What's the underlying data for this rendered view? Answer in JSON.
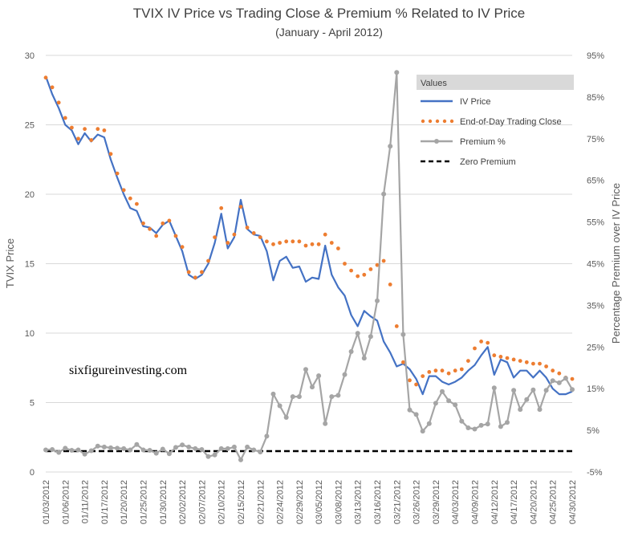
{
  "chart_data": {
    "type": "line",
    "title": "TVIX IV Price vs Trading Close & Premium % Related to IV Price",
    "subtitle": "(January - April 2012)",
    "ylabel": "TVIX Price",
    "y2label": "Percentage Premium over IV Price",
    "ylim": [
      0,
      30
    ],
    "y2lim": [
      -5,
      95
    ],
    "yticks": [
      "0",
      "5",
      "10",
      "15",
      "20",
      "25",
      "30"
    ],
    "y2ticks": [
      "-5%",
      "5%",
      "15%",
      "25%",
      "35%",
      "45%",
      "55%",
      "65%",
      "75%",
      "85%",
      "95%"
    ],
    "grid": true,
    "legend_title": "Values",
    "legend_position": "top-right",
    "annotation": "sixfigureinvesting.com",
    "x": [
      "01/03/2012",
      "01/04/2012",
      "01/05/2012",
      "01/06/2012",
      "01/09/2012",
      "01/10/2012",
      "01/11/2012",
      "01/12/2012",
      "01/13/2012",
      "01/17/2012",
      "01/18/2012",
      "01/19/2012",
      "01/20/2012",
      "01/23/2012",
      "01/24/2012",
      "01/25/2012",
      "01/26/2012",
      "01/27/2012",
      "01/30/2012",
      "01/31/2012",
      "02/01/2012",
      "02/02/2012",
      "02/03/2012",
      "02/06/2012",
      "02/07/2012",
      "02/08/2012",
      "02/09/2012",
      "02/10/2012",
      "02/13/2012",
      "02/14/2012",
      "02/15/2012",
      "02/16/2012",
      "02/17/2012",
      "02/21/2012",
      "02/22/2012",
      "02/23/2012",
      "02/24/2012",
      "02/27/2012",
      "02/28/2012",
      "02/29/2012",
      "03/01/2012",
      "03/02/2012",
      "03/05/2012",
      "03/06/2012",
      "03/07/2012",
      "03/08/2012",
      "03/09/2012",
      "03/12/2012",
      "03/13/2012",
      "03/14/2012",
      "03/15/2012",
      "03/16/2012",
      "03/19/2012",
      "03/20/2012",
      "03/21/2012",
      "03/22/2012",
      "03/23/2012",
      "03/26/2012",
      "03/27/2012",
      "03/28/2012",
      "03/29/2012",
      "03/30/2012",
      "04/02/2012",
      "04/03/2012",
      "04/04/2012",
      "04/05/2012",
      "04/09/2012",
      "04/10/2012",
      "04/11/2012",
      "04/12/2012",
      "04/13/2012",
      "04/16/2012",
      "04/17/2012",
      "04/18/2012",
      "04/19/2012",
      "04/20/2012",
      "04/23/2012",
      "04/24/2012",
      "04/25/2012",
      "04/26/2012",
      "04/27/2012",
      "04/30/2012"
    ],
    "xtick_labels": [
      "01/03/2012",
      "01/06/2012",
      "01/11/2012",
      "01/17/2012",
      "01/20/2012",
      "01/25/2012",
      "01/30/2012",
      "02/02/2012",
      "02/07/2012",
      "02/10/2012",
      "02/15/2012",
      "02/21/2012",
      "02/24/2012",
      "02/29/2012",
      "03/05/2012",
      "03/08/2012",
      "03/13/2012",
      "03/16/2012",
      "03/21/2012",
      "03/26/2012",
      "03/29/2012",
      "04/03/2012",
      "04/09/2012",
      "04/12/2012",
      "04/17/2012",
      "04/20/2012",
      "04/25/2012",
      "04/30/2012"
    ],
    "series": [
      {
        "name": "IV Price",
        "axis": "left",
        "color": "#4472c4",
        "style": "solid",
        "values": [
          28.5,
          27.2,
          26.2,
          25.0,
          24.6,
          23.6,
          24.4,
          23.8,
          24.3,
          24.1,
          22.5,
          21.2,
          20.0,
          19.0,
          18.8,
          17.7,
          17.6,
          17.2,
          17.8,
          18.1,
          17.0,
          15.9,
          14.2,
          13.9,
          14.2,
          15.0,
          16.5,
          18.6,
          16.1,
          16.9,
          19.6,
          17.5,
          17.1,
          17.0,
          15.9,
          13.8,
          15.2,
          15.5,
          14.7,
          14.8,
          13.7,
          14.0,
          13.9,
          16.3,
          14.2,
          13.3,
          12.7,
          11.3,
          10.5,
          11.6,
          11.2,
          10.9,
          9.4,
          8.6,
          7.6,
          7.8,
          7.4,
          6.7,
          5.6,
          6.9,
          6.9,
          6.5,
          6.3,
          6.5,
          6.8,
          7.3,
          7.7,
          8.4,
          9.0,
          7.0,
          8.1,
          7.9,
          6.8,
          7.3,
          7.3,
          6.8,
          7.3,
          6.8,
          6.0,
          5.6,
          5.6,
          5.8
        ]
      },
      {
        "name": "End-of-Day Trading Close",
        "axis": "left",
        "color": "#ed7d31",
        "style": "dotted",
        "values": [
          28.4,
          27.7,
          26.6,
          25.5,
          24.8,
          24.0,
          24.7,
          23.9,
          24.7,
          24.6,
          22.9,
          21.5,
          20.3,
          19.7,
          19.3,
          17.9,
          17.5,
          17.0,
          17.9,
          18.1,
          17.0,
          16.2,
          14.4,
          14.0,
          14.4,
          15.2,
          16.9,
          19.0,
          16.5,
          17.1,
          19.1,
          17.6,
          17.2,
          16.9,
          16.6,
          16.4,
          16.5,
          16.6,
          16.6,
          16.6,
          16.3,
          16.4,
          16.4,
          17.1,
          16.5,
          16.1,
          15.0,
          14.5,
          14.1,
          14.2,
          14.6,
          14.9,
          15.2,
          13.5,
          10.5,
          7.9,
          6.6,
          6.3,
          6.9,
          7.2,
          7.3,
          7.3,
          7.1,
          7.3,
          7.4,
          8.0,
          8.9,
          9.4,
          9.3,
          8.4,
          8.3,
          8.2,
          8.1,
          8.0,
          7.9,
          7.8,
          7.8,
          7.6,
          7.3,
          7.1,
          6.8,
          6.7
        ]
      },
      {
        "name": "Premium %",
        "axis": "right",
        "color": "#a5a5a5",
        "style": "solid-marker",
        "values": [
          0.3,
          0.4,
          -0.3,
          0.7,
          0.2,
          0.3,
          -0.7,
          0.1,
          1.2,
          1.0,
          0.8,
          0.7,
          0.6,
          0.3,
          1.6,
          0.3,
          0.2,
          -0.5,
          0.5,
          -0.6,
          0.9,
          1.5,
          1.0,
          0.6,
          0.4,
          -1.3,
          -0.9,
          0.6,
          0.6,
          1.0,
          -2.1,
          1.0,
          0.3,
          -0.2,
          3.6,
          13.7,
          10.9,
          8.1,
          13.1,
          13.1,
          19.6,
          15.4,
          18.1,
          6.6,
          13.1,
          13.4,
          18.4,
          23.9,
          28.3,
          22.3,
          27.5,
          36.1,
          61.7,
          73.2,
          90.9,
          28.0,
          9.9,
          8.8,
          4.8,
          6.6,
          11.5,
          14.3,
          12.1,
          11.1,
          7.2,
          5.6,
          5.3,
          6.2,
          6.5,
          15.2,
          5.9,
          6.9,
          14.6,
          10.0,
          12.4,
          14.7,
          10.0,
          14.6,
          16.9,
          16.4,
          17.5,
          14.8
        ]
      }
    ],
    "reference_lines": [
      {
        "name": "Zero Premium",
        "axis": "right",
        "value": 0,
        "color": "#000000",
        "style": "dashed"
      }
    ]
  }
}
